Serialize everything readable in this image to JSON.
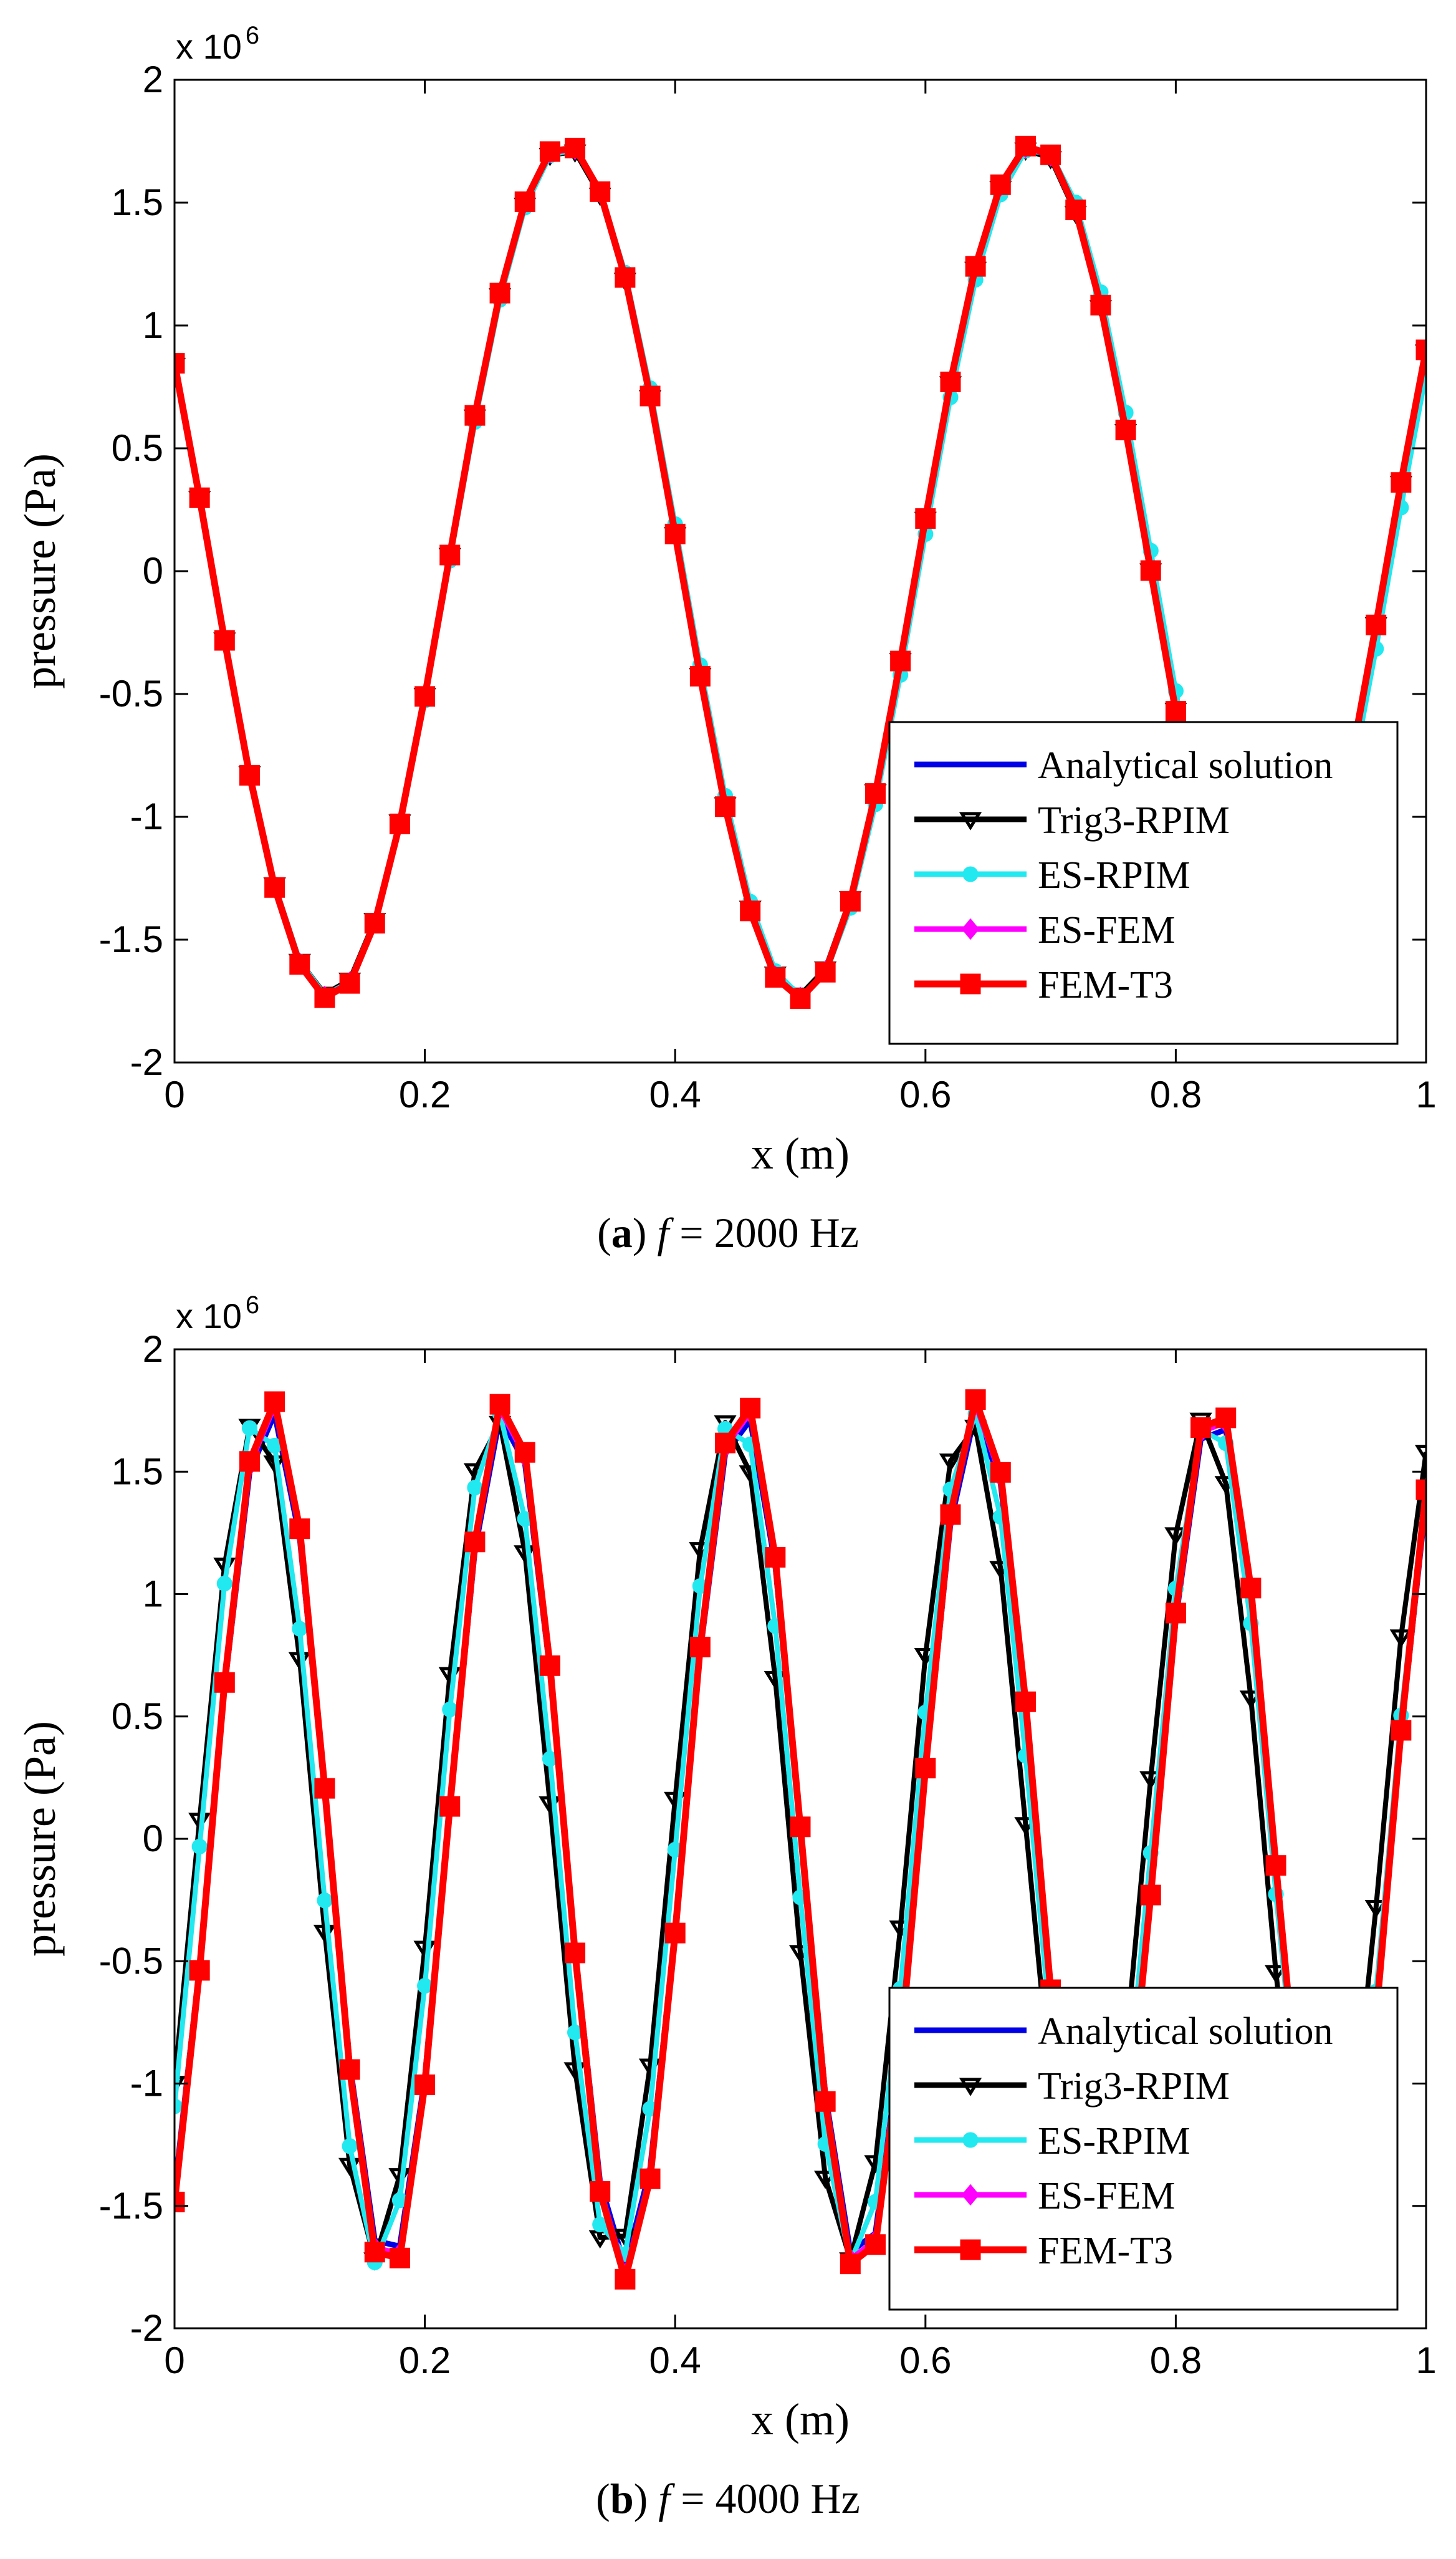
{
  "colors": {
    "analytical": "#0000e6",
    "trig3": "#000000",
    "esrpim": "#22e8f0",
    "esfem": "#ff00ff",
    "femt3": "#ff0000"
  },
  "chart_data": [
    {
      "type": "line",
      "panel_letter": "a",
      "panel_prefix": "(",
      "panel_suffix": ") ",
      "freq_symbol": "f",
      "freq_text": " = 2000 Hz",
      "xlabel": "x (m)",
      "ylabel": "pressure (Pa)",
      "exponent_base": "x 10",
      "exponent_power": "6",
      "xlim": [
        0,
        1
      ],
      "ylim": [
        -2000000,
        2000000
      ],
      "xticks": [
        "0",
        "0.2",
        "0.4",
        "0.6",
        "0.8",
        "1"
      ],
      "yticks": [
        "-2",
        "-1.5",
        "-1",
        "-0.5",
        "0",
        "0.5",
        "1",
        "1.5",
        "2"
      ],
      "grid": false,
      "legend_position": "bottom-right",
      "frequency_hz": 2000,
      "sampling": {
        "x_start": 0,
        "x_step": 0.02,
        "count": 51
      },
      "series": [
        {
          "name": "Analytical solution",
          "color_key": "analytical",
          "marker": "none",
          "amplitude": 1740000,
          "wavenumber": 16.76,
          "phase": 1.063
        },
        {
          "name": "Trig3-RPIM",
          "color_key": "trig3",
          "marker": "triangle-down",
          "amplitude": 1725000,
          "wavenumber": 16.76,
          "phase": 1.063
        },
        {
          "name": "ES-RPIM",
          "color_key": "esrpim",
          "marker": "circle",
          "amplitude": 1730000,
          "wavenumber": 16.7,
          "phase": 1.063
        },
        {
          "name": "ES-FEM",
          "color_key": "esfem",
          "marker": "diamond",
          "amplitude": 1735000,
          "wavenumber": 16.76,
          "phase": 1.063
        },
        {
          "name": "FEM-T3",
          "color_key": "femt3",
          "marker": "square",
          "amplitude": 1740000,
          "wavenumber": 16.76,
          "phase": 1.063
        }
      ]
    },
    {
      "type": "line",
      "panel_letter": "b",
      "panel_prefix": "(",
      "panel_suffix": ") ",
      "freq_symbol": "f",
      "freq_text": " = 4000 Hz",
      "xlabel": "x (m)",
      "ylabel": "pressure (Pa)",
      "exponent_base": "x 10",
      "exponent_power": "6",
      "xlim": [
        0,
        1
      ],
      "ylim": [
        -2000000,
        2000000
      ],
      "xticks": [
        "0",
        "0.2",
        "0.4",
        "0.6",
        "0.8",
        "1"
      ],
      "yticks": [
        "-2",
        "-1.5",
        "-1",
        "-0.5",
        "0",
        "0.5",
        "1",
        "1.5",
        "2"
      ],
      "grid": false,
      "legend_position": "bottom-right",
      "frequency_hz": 4000,
      "sampling": {
        "x_start": 0,
        "x_step": 0.02,
        "count": 51
      },
      "series": [
        {
          "name": "Analytical solution",
          "color_key": "analytical",
          "marker": "none",
          "amplitude": 1750000,
          "wavenumber": 33.3,
          "phase": -2.54
        },
        {
          "name": "Trig3-RPIM",
          "color_key": "trig3",
          "marker": "triangle-down",
          "amplitude": 1720000,
          "wavenumber": 33.2,
          "phase": -2.19
        },
        {
          "name": "ES-RPIM",
          "color_key": "esrpim",
          "marker": "circle",
          "amplitude": 1740000,
          "wavenumber": 33.05,
          "phase": -2.25
        },
        {
          "name": "ES-FEM",
          "color_key": "esfem",
          "marker": "diamond",
          "amplitude": 1780000,
          "wavenumber": 33.3,
          "phase": -2.54
        },
        {
          "name": "FEM-T3",
          "color_key": "femt3",
          "marker": "square",
          "amplitude": 1800000,
          "wavenumber": 33.3,
          "phase": -2.54
        }
      ]
    }
  ]
}
